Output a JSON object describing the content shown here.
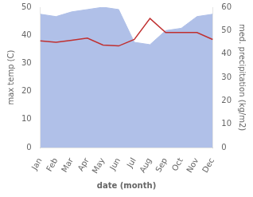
{
  "chart_data": {
    "type": "line",
    "categories": [
      "Jan",
      "Feb",
      "Mar",
      "Apr",
      "May",
      "Jun",
      "Jul",
      "Aug",
      "Sep",
      "Oct",
      "Nov",
      "Dec"
    ],
    "xlabel": "date (month)",
    "ylabel": "max temp (C)",
    "y2label": "med. precipitation (kg/m2)",
    "ylim": [
      0,
      50
    ],
    "yticks": [
      0,
      10,
      20,
      30,
      40,
      50
    ],
    "y2lim": [
      0,
      60
    ],
    "y2ticks": [
      0,
      10,
      20,
      30,
      40,
      50,
      60
    ],
    "grid": false,
    "series": [
      {
        "type": "area",
        "axis": "y2",
        "color": "#b0c0e8",
        "values": [
          57,
          56,
          58,
          59,
          60,
          59,
          45,
          44,
          50,
          51,
          56,
          57
        ],
        "lower": [
          0,
          0,
          0,
          0,
          0,
          0,
          0,
          0,
          0,
          0,
          0,
          0
        ]
      },
      {
        "type": "line",
        "color": "#c03030",
        "values": [
          38.0,
          37.5,
          38.2,
          39.0,
          36.5,
          36.2,
          38.5,
          46.0,
          41.0,
          41.0,
          41.0,
          38.5
        ]
      }
    ]
  }
}
